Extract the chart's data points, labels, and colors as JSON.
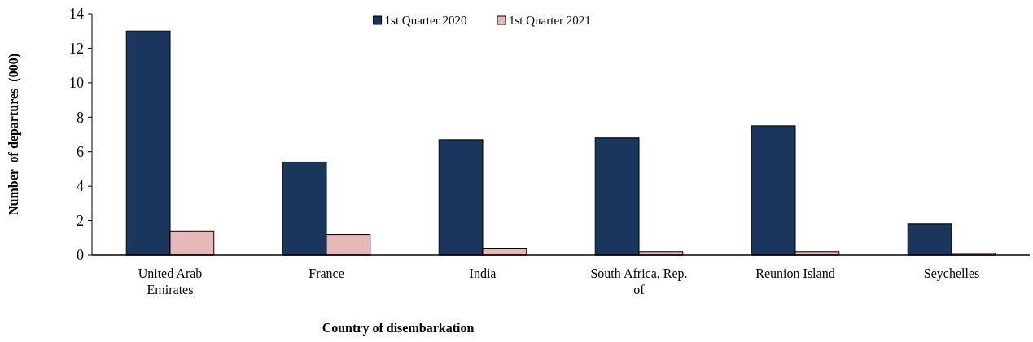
{
  "chart_data": {
    "type": "bar",
    "xlabel": "Country of disembarkation",
    "ylabel": "Number  of departures  (000)",
    "categories": [
      "United Arab Emirates",
      "France",
      "India",
      "South Africa, Rep. of",
      "Reunion Island",
      "Seychelles"
    ],
    "series": [
      {
        "name": "1st Quarter 2020",
        "color": "#1a365d",
        "values": [
          13.0,
          5.4,
          6.7,
          6.8,
          7.5,
          1.8
        ]
      },
      {
        "name": "1st Quarter 2021",
        "color": "#e6b8b7",
        "values": [
          1.4,
          1.2,
          0.4,
          0.2,
          0.2,
          0.1
        ]
      }
    ],
    "ylim": [
      0,
      14
    ],
    "yticks": [
      0,
      2,
      4,
      6,
      8,
      10,
      12,
      14
    ],
    "grid": false,
    "legend": "top"
  }
}
